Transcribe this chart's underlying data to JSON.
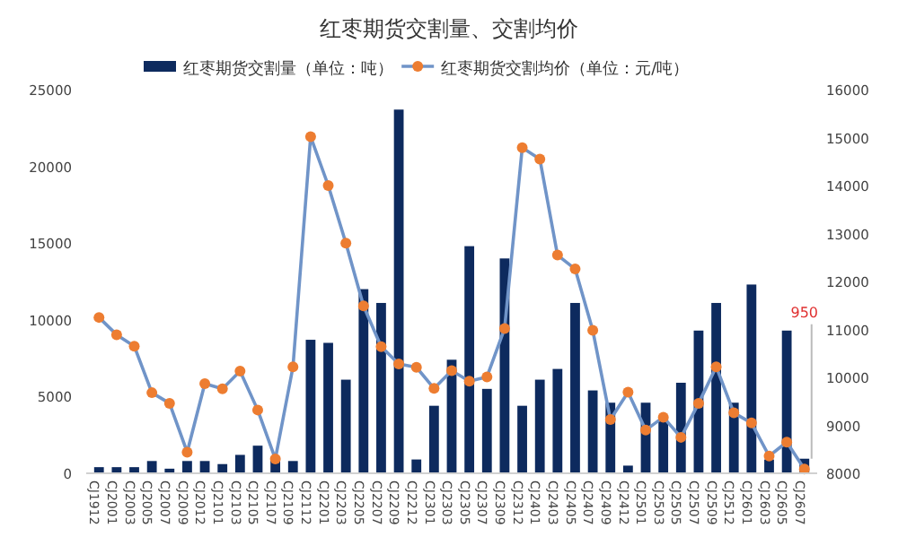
{
  "chart_data": {
    "type": "bar",
    "title": "红枣期货交割量、交割均价",
    "categories": [
      "CJ1912",
      "CJ2001",
      "CJ2003",
      "CJ2005",
      "CJ2007",
      "CJ2009",
      "CJ2012",
      "CJ2101",
      "CJ2103",
      "CJ2105",
      "CJ2107",
      "CJ2109",
      "CJ2112",
      "CJ2201",
      "CJ2203",
      "CJ2205",
      "CJ2207",
      "CJ2209",
      "CJ2212",
      "CJ2301",
      "CJ2303",
      "CJ2305",
      "CJ2307",
      "CJ2309",
      "CJ2312",
      "CJ2401",
      "CJ2403",
      "CJ2405",
      "CJ2407",
      "CJ2409",
      "CJ2412",
      "CJ2501",
      "CJ2503",
      "CJ2505",
      "CJ2507",
      "CJ2509",
      "CJ2512",
      "CJ2601",
      "CJ2603",
      "CJ2605",
      "CJ2607"
    ],
    "series": [
      {
        "name": "红枣期货交割量（单位：吨）",
        "color": "#0d2a5e",
        "values": [
          400,
          400,
          400,
          800,
          300,
          800,
          800,
          600,
          1200,
          1800,
          1000,
          800,
          8700,
          8500,
          6100,
          12000,
          11100,
          23700,
          900,
          4400,
          7400,
          14800,
          5500,
          14000,
          4400,
          6100,
          6800,
          11100,
          5400,
          4600,
          500,
          4600,
          3600,
          5900,
          9300,
          11100,
          4600,
          12300,
          900,
          9300,
          950
        ],
        "value_labels": [
          null,
          null,
          null,
          null,
          null,
          null,
          null,
          null,
          null,
          null,
          null,
          null,
          null,
          null,
          null,
          null,
          null,
          null,
          null,
          null,
          null,
          null,
          null,
          null,
          null,
          null,
          null,
          null,
          null,
          null,
          null,
          null,
          null,
          null,
          null,
          null,
          null,
          null,
          null,
          null,
          "950"
        ]
      },
      {
        "name": "红枣期货交割均价（单位：元/吨）",
        "type": "line",
        "axis": "y2",
        "color": "#7094c8",
        "marker": "circle",
        "values": [
          11250,
          10890,
          10650,
          9680,
          9460,
          8440,
          9870,
          9760,
          10130,
          9320,
          8300,
          10220,
          15020,
          14000,
          12800,
          11490,
          10640,
          10280,
          10210,
          9770,
          10140,
          9920,
          10010,
          11020,
          14790,
          14550,
          12550,
          12260,
          10980,
          9120,
          9690,
          8900,
          9170,
          8750,
          9460,
          10220,
          9260,
          9050,
          8360,
          8650,
          8090
        ]
      }
    ],
    "ylim": [
      0,
      25000
    ],
    "yticks": [
      0,
      5000,
      10000,
      15000,
      20000,
      25000
    ],
    "y2lim": [
      8000,
      16000
    ],
    "y2ticks": [
      8000,
      9000,
      10000,
      11000,
      12000,
      13000,
      14000,
      15000,
      16000
    ],
    "legend": "top"
  }
}
